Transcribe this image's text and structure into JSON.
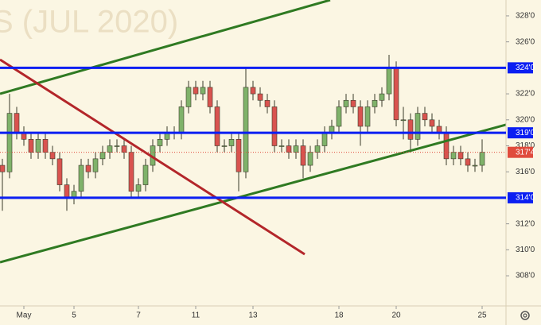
{
  "chart_data": {
    "type": "candlestick",
    "title": "S (JUL 2020)",
    "categories": [
      null,
      null,
      null,
      "May",
      null,
      null,
      null,
      null,
      null,
      null,
      "5",
      null,
      null,
      null,
      null,
      null,
      null,
      null,
      null,
      "7",
      null,
      null,
      null,
      null,
      null,
      null,
      null,
      "11",
      null,
      null,
      null,
      null,
      null,
      null,
      null,
      "13",
      null,
      null,
      null,
      null,
      null,
      null,
      null,
      null,
      null,
      null,
      null,
      "18",
      null,
      null,
      null,
      null,
      null,
      null,
      null,
      "20",
      null,
      null,
      null,
      null,
      null,
      null,
      null,
      null,
      null,
      null,
      null,
      "25"
    ],
    "open": [
      316.5,
      316,
      320.5,
      319,
      318.5,
      317.5,
      318.5,
      317.5,
      317,
      315,
      314,
      314.5,
      316.5,
      316,
      317,
      317.5,
      318,
      318,
      317.5,
      314.5,
      315,
      316.5,
      318,
      318.5,
      319,
      319,
      321,
      322.5,
      322,
      322.5,
      321,
      318,
      318,
      318.5,
      316,
      322.5,
      322,
      321.5,
      321,
      318,
      318,
      317.5,
      318,
      316.5,
      317.5,
      318,
      319,
      319.5,
      321,
      321.5,
      321,
      319.5,
      321,
      321.5,
      322,
      324,
      320,
      320,
      318.5,
      320.5,
      320,
      319.5,
      319,
      317,
      317.5,
      317,
      316.5,
      316.5
    ],
    "high": [
      317,
      322,
      321,
      319.5,
      319,
      319,
      319,
      318,
      317.5,
      315.5,
      315,
      317,
      317,
      317.5,
      318,
      318.5,
      318.5,
      318.5,
      318,
      315.5,
      317,
      318.5,
      319,
      319.5,
      319.5,
      321.5,
      323,
      323,
      323,
      323,
      321.5,
      318.5,
      319,
      319,
      324,
      323,
      322.5,
      322,
      321.5,
      318.5,
      318.5,
      318.5,
      318.5,
      318,
      318.5,
      319.5,
      320,
      321.5,
      322,
      322,
      321.5,
      321.5,
      322,
      322.5,
      325,
      324.5,
      321,
      320.5,
      321,
      321,
      320.5,
      320,
      319.5,
      318,
      318,
      317.5,
      317,
      318.5
    ],
    "low": [
      313,
      315.5,
      318.5,
      318,
      317,
      317,
      317,
      316.5,
      314.5,
      313,
      313.5,
      314,
      315.5,
      315.5,
      316.5,
      317,
      317.5,
      317,
      314,
      314,
      314.5,
      316,
      317.5,
      318,
      318.5,
      318.5,
      320.5,
      321.5,
      321.5,
      320.5,
      317.5,
      317.5,
      317.5,
      314.5,
      315.5,
      321.5,
      321,
      320.5,
      317.5,
      317.5,
      317,
      317,
      315.5,
      316,
      317,
      317.5,
      318.5,
      319,
      320.5,
      320.5,
      318,
      319,
      320.5,
      321,
      321.5,
      319.5,
      318.5,
      317.5,
      318,
      319.5,
      319,
      318.5,
      316.5,
      316.5,
      316.5,
      316,
      316,
      316
    ],
    "close": [
      316,
      320.5,
      319,
      318.5,
      317.5,
      318.5,
      317.5,
      317,
      315,
      314,
      314.5,
      316.5,
      316,
      317,
      317.5,
      318,
      318,
      317.5,
      314.5,
      315,
      316.5,
      318,
      318.5,
      319,
      319,
      321,
      322.5,
      322,
      322.5,
      321,
      318,
      318,
      318.5,
      316,
      322.5,
      322,
      321.5,
      321,
      318,
      318,
      317.5,
      318,
      316.5,
      317.5,
      318,
      319,
      319.5,
      321,
      321.5,
      321,
      319.5,
      321,
      321.5,
      322,
      324,
      320,
      320,
      318.5,
      320.5,
      320,
      319.5,
      319,
      317,
      317.5,
      317,
      316.5,
      316.5,
      317.5
    ],
    "up_color": "#7fb26a",
    "down_color": "#d9534f",
    "ylim": [
      305.68,
      329.22
    ],
    "yticks": [
      {
        "value": 328,
        "label": "328'0"
      },
      {
        "value": 326,
        "label": "326'0"
      },
      {
        "value": 322,
        "label": "322'0"
      },
      {
        "value": 320,
        "label": "320'0"
      },
      {
        "value": 318,
        "label": "318'0"
      },
      {
        "value": 316,
        "label": "316'0"
      },
      {
        "value": 312,
        "label": "312'0"
      },
      {
        "value": 310,
        "label": "310'0"
      },
      {
        "value": 308,
        "label": "308'0"
      }
    ],
    "levels": [
      {
        "value": 324,
        "label": "324'0",
        "color": "#0b1ff2"
      },
      {
        "value": 319,
        "label": "319'0",
        "color": "#0b1ff2"
      },
      {
        "value": 314,
        "label": "314'0",
        "color": "#0b1ff2"
      }
    ],
    "last_price": {
      "value": 317.5,
      "label": "317'4",
      "color": "#e04b3c"
    }
  }
}
